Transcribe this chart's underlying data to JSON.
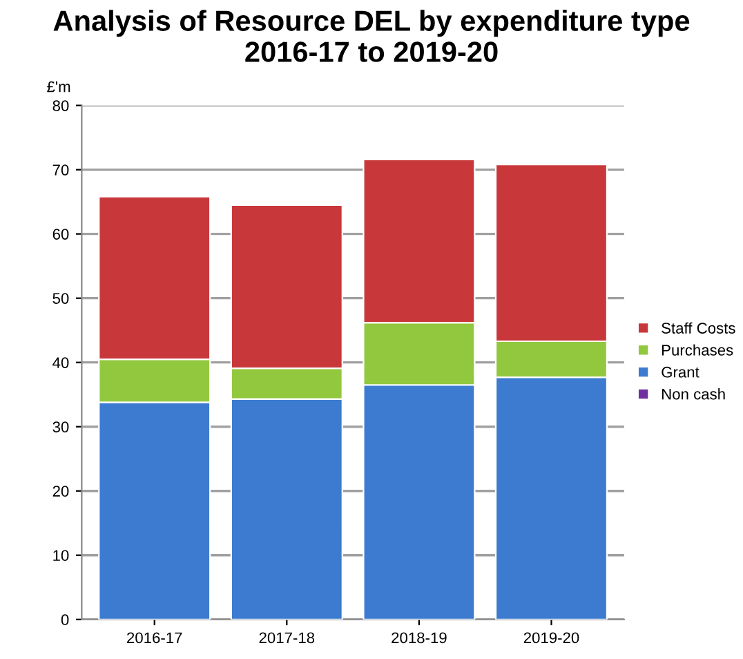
{
  "chart_data": {
    "type": "bar",
    "title": "Analysis of Resource DEL by expenditure type\n2016-17 to 2019-20",
    "ylabel": "£'m",
    "categories": [
      "2016-17",
      "2017-18",
      "2018-19",
      "2019-20"
    ],
    "stacked": true,
    "series": [
      {
        "name": "Non cash",
        "color": "#7030a0",
        "values": [
          0,
          0,
          0,
          0
        ]
      },
      {
        "name": "Grant",
        "color": "#3c7bd0",
        "values": [
          33.8,
          34.3,
          36.5,
          37.7
        ]
      },
      {
        "name": "Purchases",
        "color": "#92c83e",
        "values": [
          6.7,
          4.8,
          9.7,
          5.6
        ]
      },
      {
        "name": "Staff Costs",
        "color": "#c8383a",
        "values": [
          25.3,
          25.4,
          25.4,
          27.5
        ]
      }
    ],
    "ylim": [
      0,
      80
    ],
    "yticks": [
      0,
      10,
      20,
      30,
      40,
      50,
      60,
      70,
      80
    ],
    "grid": "y",
    "legend": "right"
  }
}
